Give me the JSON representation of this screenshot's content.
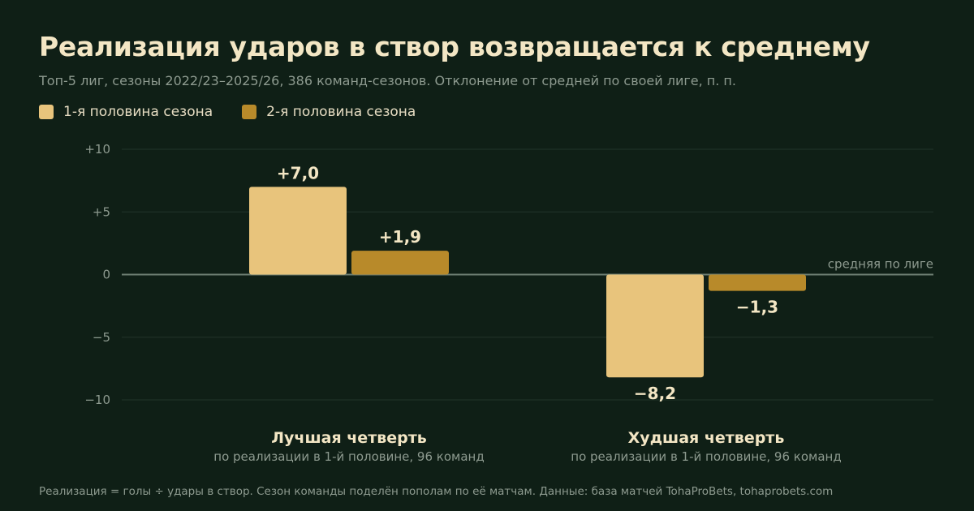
{
  "colors": {
    "background": "#0f1f16",
    "series1": "#e8c47c",
    "series2": "#b88a2a",
    "grid": "#22352a",
    "zero_line": "#6e7f72",
    "muted_text": "#8d9a8f",
    "text": "#f3e6c4"
  },
  "footer": "Реализация = голы ÷ удары в створ. Сезон команды поделён пополам по её матчам. Данные: база матчей TohaProBets, tohaprobets.com",
  "chart_data": {
    "type": "bar",
    "title": "Реализация ударов в створ возвращается к среднему",
    "subtitle": "Топ-5 лиг, сезоны 2022/23–2025/26, 386 команд-сезонов. Отклонение от средней по своей лиге, п. п.",
    "categories": [
      "Лучшая четверть",
      "Худшая четверть"
    ],
    "category_subtitles": [
      "по реализации в 1-й половине, 96 команд",
      "по реализации в 1-й половине, 96 команд"
    ],
    "series": [
      {
        "name": "1-я половина сезона",
        "values": [
          7.0,
          -8.2
        ],
        "labels": [
          "+7,0",
          "−8,2"
        ]
      },
      {
        "name": "2-я половина сезона",
        "values": [
          1.9,
          -1.3
        ],
        "labels": [
          "+1,9",
          "−1,3"
        ]
      }
    ],
    "ylim": [
      -10,
      10
    ],
    "yticks": [
      10,
      5,
      0,
      -5,
      -10
    ],
    "ytick_labels": [
      "+10",
      "+5",
      "0",
      "−5",
      "−10"
    ],
    "baseline_annotation": "средняя по лиге",
    "grid": true,
    "legend_position": "top-left"
  }
}
